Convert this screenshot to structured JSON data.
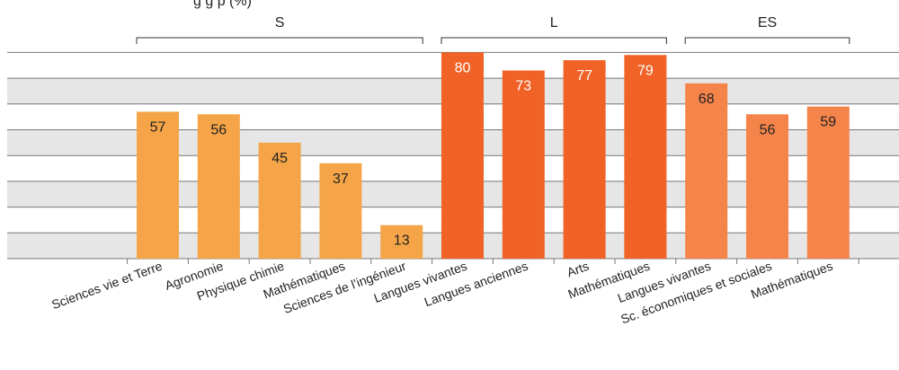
{
  "chart_data": {
    "type": "bar",
    "title": "",
    "xlabel": "",
    "ylabel": "",
    "ylim": [
      0,
      80
    ],
    "grid": true,
    "groups": [
      {
        "name": "S",
        "color": "#f5a547",
        "bars": [
          {
            "category": "Sciences vie et Terre",
            "value": 57
          },
          {
            "category": "Agronomie",
            "value": 56
          },
          {
            "category": "Physique chimie",
            "value": 45
          },
          {
            "category": "Mathématiques",
            "value": 37
          },
          {
            "category": "Sciences de l’ingénieur",
            "value": 13
          }
        ]
      },
      {
        "name": "L",
        "color": "#f06225",
        "bars": [
          {
            "category": "Langues vivantes",
            "value": 80
          },
          {
            "category": "Langues anciennes",
            "value": 73
          },
          {
            "category": "Arts",
            "value": 77
          },
          {
            "category": "Mathématiques",
            "value": 79
          }
        ]
      },
      {
        "name": "ES",
        "color": "#f5844a",
        "bars": [
          {
            "category": "Langues vivantes",
            "value": 68
          },
          {
            "category": "Sc. économiques et sociales",
            "value": 56
          },
          {
            "category": "Mathématiques",
            "value": 59
          }
        ]
      }
    ]
  }
}
